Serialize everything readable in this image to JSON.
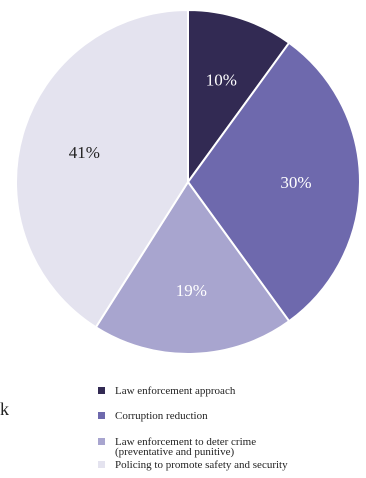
{
  "fragment_text": "k",
  "chart_data": {
    "type": "pie",
    "title": "",
    "legend_position": "bottom",
    "start_angle": "top (12 o'clock)",
    "direction": "clockwise",
    "slices": [
      {
        "name": "Law enforcement approach",
        "value": 10,
        "label": "10%",
        "color": "#322a53",
        "label_color": "#ffffff"
      },
      {
        "name": "Corruption reduction",
        "value": 30,
        "label": "30%",
        "color": "#6e69ad",
        "label_color": "#ffffff"
      },
      {
        "name": "Law enforcement to deter crime\n(preventative and punitive)",
        "value": 19,
        "label": "19%",
        "color": "#a8a5cf",
        "label_color": "#ffffff"
      },
      {
        "name": "Policing to promote safety and security",
        "value": 41,
        "label": "41%",
        "color": "#e4e3ef",
        "label_color": "#222222"
      }
    ]
  }
}
